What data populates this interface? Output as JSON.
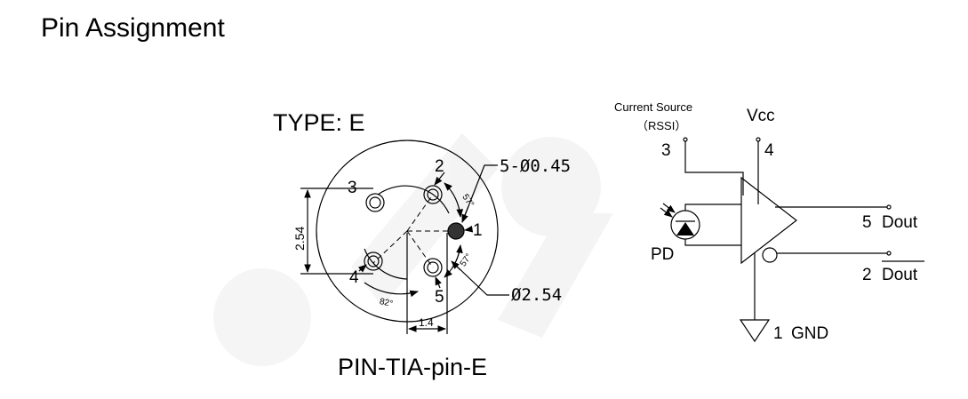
{
  "page": {
    "title": "Pin Assignment"
  },
  "package": {
    "type_label": "TYPE: E",
    "caption": "PIN-TIA-pin-E",
    "pins": [
      {
        "number": "1"
      },
      {
        "number": "2"
      },
      {
        "number": "3"
      },
      {
        "number": "4"
      },
      {
        "number": "5"
      }
    ],
    "dimensions": {
      "pin_diameter": "5-Ø0.45",
      "circle_diameter": "Ø2.54",
      "spacing_vertical": "2.54",
      "spacing_horizontal": "1.4",
      "angle_upper": "57°",
      "angle_lower": "57°",
      "angle_left": "82°"
    }
  },
  "schematic": {
    "current_source_label": "Current Source",
    "rssi_label": "（RSSI）",
    "rssi_pin": "3",
    "vcc_label": "Vcc",
    "vcc_pin": "4",
    "pd_label": "PD",
    "dout_pin": "5",
    "dout_label": "Dout",
    "doutb_pin": "2",
    "doutb_label": "Dout",
    "gnd_pin": "1",
    "gnd_label": "GND"
  },
  "watermark": {
    "color": "#000000"
  }
}
